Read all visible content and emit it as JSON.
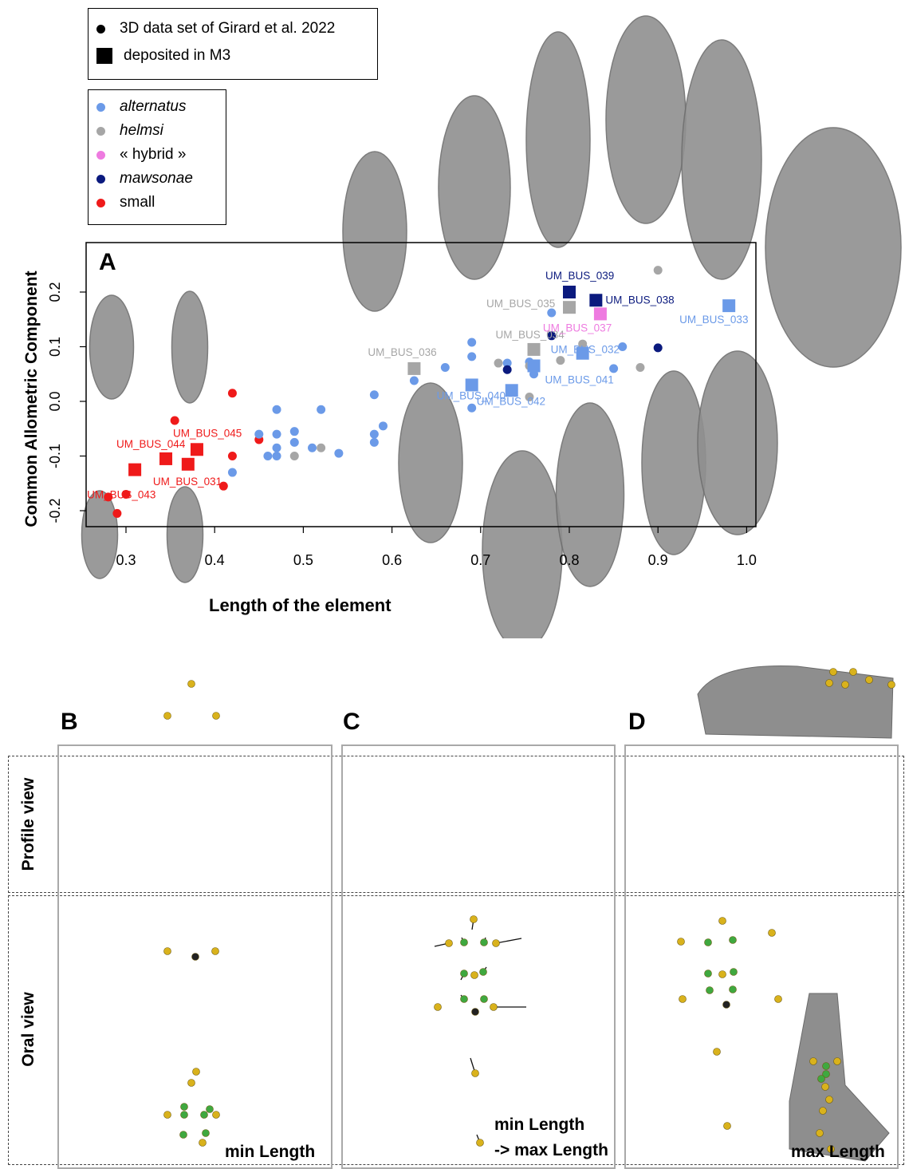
{
  "panel_a": {
    "letter": "A",
    "legend_top": [
      {
        "marker": "circle",
        "label": "3D data set of Girard et al. 2022"
      },
      {
        "marker": "square",
        "label": "deposited in M3"
      }
    ],
    "legend_species": [
      {
        "label": "alternatus",
        "color": "#6b9ae8",
        "italic": true
      },
      {
        "label": "helmsi",
        "color": "#a6a6a6",
        "italic": true
      },
      {
        "label": "« hybrid »",
        "color": "#ee7be0",
        "italic": false
      },
      {
        "label": "mawsonae",
        "color": "#0b1a7e",
        "italic": true
      },
      {
        "label": "small",
        "color": "#ef1a1a",
        "italic": false
      }
    ]
  },
  "chart_data": {
    "type": "scatter",
    "xlabel": "Length of the element",
    "ylabel": "Common Allometric Component",
    "xlim": [
      0.27,
      1.02
    ],
    "ylim": [
      -0.22,
      0.29
    ],
    "xticks": [
      "0.3",
      "0.4",
      "0.5",
      "0.6",
      "0.7",
      "0.8",
      "0.9",
      "1.0"
    ],
    "xtick_values": [
      0.3,
      0.4,
      0.5,
      0.6,
      0.7,
      0.8,
      0.9,
      1.0
    ],
    "yticks": [
      "-0.2",
      "-0.1",
      "0.0",
      "0.1",
      "0.2"
    ],
    "ytick_values": [
      -0.2,
      -0.1,
      0.0,
      0.1,
      0.2
    ],
    "grid": false,
    "colors": {
      "alternatus": "#6b9ae8",
      "helmsi": "#a6a6a6",
      "hybrid": "#ee7be0",
      "mawsonae": "#0b1a7e",
      "small": "#ef1a1a"
    },
    "points": [
      {
        "x": 0.28,
        "y": -0.175,
        "group": "small"
      },
      {
        "x": 0.3,
        "y": -0.17,
        "group": "small"
      },
      {
        "x": 0.29,
        "y": -0.205,
        "group": "small"
      },
      {
        "x": 0.355,
        "y": -0.035,
        "group": "small"
      },
      {
        "x": 0.41,
        "y": -0.155,
        "group": "small"
      },
      {
        "x": 0.42,
        "y": 0.015,
        "group": "small"
      },
      {
        "x": 0.42,
        "y": -0.1,
        "group": "small"
      },
      {
        "x": 0.45,
        "y": -0.07,
        "group": "small"
      },
      {
        "x": 0.42,
        "y": -0.13,
        "group": "alternatus"
      },
      {
        "x": 0.45,
        "y": -0.06,
        "group": "alternatus"
      },
      {
        "x": 0.46,
        "y": -0.1,
        "group": "alternatus"
      },
      {
        "x": 0.47,
        "y": -0.015,
        "group": "alternatus"
      },
      {
        "x": 0.47,
        "y": -0.06,
        "group": "alternatus"
      },
      {
        "x": 0.47,
        "y": -0.085,
        "group": "alternatus"
      },
      {
        "x": 0.47,
        "y": -0.1,
        "group": "alternatus"
      },
      {
        "x": 0.49,
        "y": -0.055,
        "group": "alternatus"
      },
      {
        "x": 0.49,
        "y": -0.075,
        "group": "alternatus"
      },
      {
        "x": 0.51,
        "y": -0.085,
        "group": "alternatus"
      },
      {
        "x": 0.52,
        "y": -0.015,
        "group": "alternatus"
      },
      {
        "x": 0.54,
        "y": -0.095,
        "group": "alternatus"
      },
      {
        "x": 0.58,
        "y": 0.012,
        "group": "alternatus"
      },
      {
        "x": 0.58,
        "y": -0.06,
        "group": "alternatus"
      },
      {
        "x": 0.58,
        "y": -0.075,
        "group": "alternatus"
      },
      {
        "x": 0.59,
        "y": -0.045,
        "group": "alternatus"
      },
      {
        "x": 0.625,
        "y": 0.038,
        "group": "alternatus"
      },
      {
        "x": 0.66,
        "y": 0.062,
        "group": "alternatus"
      },
      {
        "x": 0.69,
        "y": 0.108,
        "group": "alternatus"
      },
      {
        "x": 0.69,
        "y": 0.082,
        "group": "alternatus"
      },
      {
        "x": 0.69,
        "y": -0.012,
        "group": "alternatus"
      },
      {
        "x": 0.73,
        "y": 0.07,
        "group": "alternatus"
      },
      {
        "x": 0.755,
        "y": 0.072,
        "group": "alternatus"
      },
      {
        "x": 0.76,
        "y": 0.05,
        "group": "alternatus"
      },
      {
        "x": 0.78,
        "y": 0.162,
        "group": "alternatus"
      },
      {
        "x": 0.85,
        "y": 0.06,
        "group": "alternatus"
      },
      {
        "x": 0.86,
        "y": 0.1,
        "group": "alternatus"
      },
      {
        "x": 0.49,
        "y": -0.1,
        "group": "helmsi"
      },
      {
        "x": 0.52,
        "y": -0.085,
        "group": "helmsi"
      },
      {
        "x": 0.72,
        "y": 0.07,
        "group": "helmsi"
      },
      {
        "x": 0.755,
        "y": 0.065,
        "group": "helmsi"
      },
      {
        "x": 0.755,
        "y": 0.008,
        "group": "helmsi"
      },
      {
        "x": 0.79,
        "y": 0.075,
        "group": "helmsi"
      },
      {
        "x": 0.815,
        "y": 0.105,
        "group": "helmsi"
      },
      {
        "x": 0.88,
        "y": 0.062,
        "group": "helmsi"
      },
      {
        "x": 0.9,
        "y": 0.24,
        "group": "helmsi"
      },
      {
        "x": 0.73,
        "y": 0.058,
        "group": "mawsonae"
      },
      {
        "x": 0.78,
        "y": 0.12,
        "group": "mawsonae"
      },
      {
        "x": 0.9,
        "y": 0.098,
        "group": "mawsonae"
      }
    ],
    "specimens": [
      {
        "id": "UM_BUS_031",
        "x": 0.37,
        "y": -0.115,
        "group": "small"
      },
      {
        "id": "UM_BUS_043",
        "x": 0.31,
        "y": -0.125,
        "group": "small"
      },
      {
        "id": "UM_BUS_044",
        "x": 0.345,
        "y": -0.105,
        "group": "small"
      },
      {
        "id": "UM_BUS_045",
        "x": 0.38,
        "y": -0.088,
        "group": "small"
      },
      {
        "id": "UM_BUS_036",
        "x": 0.625,
        "y": 0.06,
        "group": "helmsi"
      },
      {
        "id": "UM_BUS_040",
        "x": 0.69,
        "y": 0.03,
        "group": "alternatus"
      },
      {
        "id": "UM_BUS_042",
        "x": 0.735,
        "y": 0.02,
        "group": "alternatus"
      },
      {
        "id": "UM_BUS_041",
        "x": 0.76,
        "y": 0.065,
        "group": "alternatus"
      },
      {
        "id": "UM_BUS_034",
        "x": 0.76,
        "y": 0.095,
        "group": "helmsi"
      },
      {
        "id": "UM_BUS_032",
        "x": 0.815,
        "y": 0.088,
        "group": "alternatus"
      },
      {
        "id": "UM_BUS_035",
        "x": 0.8,
        "y": 0.172,
        "group": "helmsi"
      },
      {
        "id": "UM_BUS_039",
        "x": 0.8,
        "y": 0.2,
        "group": "mawsonae"
      },
      {
        "id": "UM_BUS_038",
        "x": 0.83,
        "y": 0.185,
        "group": "mawsonae"
      },
      {
        "id": "UM_BUS_037",
        "x": 0.835,
        "y": 0.16,
        "group": "hybrid"
      },
      {
        "id": "UM_BUS_033",
        "x": 0.98,
        "y": 0.175,
        "group": "alternatus"
      }
    ]
  },
  "panels": {
    "b": {
      "letter": "B",
      "caption": "min Length"
    },
    "c": {
      "letter": "C",
      "caption_line1": "min Length",
      "caption_line2": "-> max Length"
    },
    "d": {
      "letter": "D",
      "caption": "max Length"
    },
    "row_labels": {
      "profile": "Profile view",
      "oral": "Oral view"
    }
  },
  "colors": {
    "landmark_yellow": "#d9b21c",
    "landmark_green": "#3fa83f",
    "landmark_black": "#222222",
    "specimen_gray": "#8f8f8f"
  }
}
